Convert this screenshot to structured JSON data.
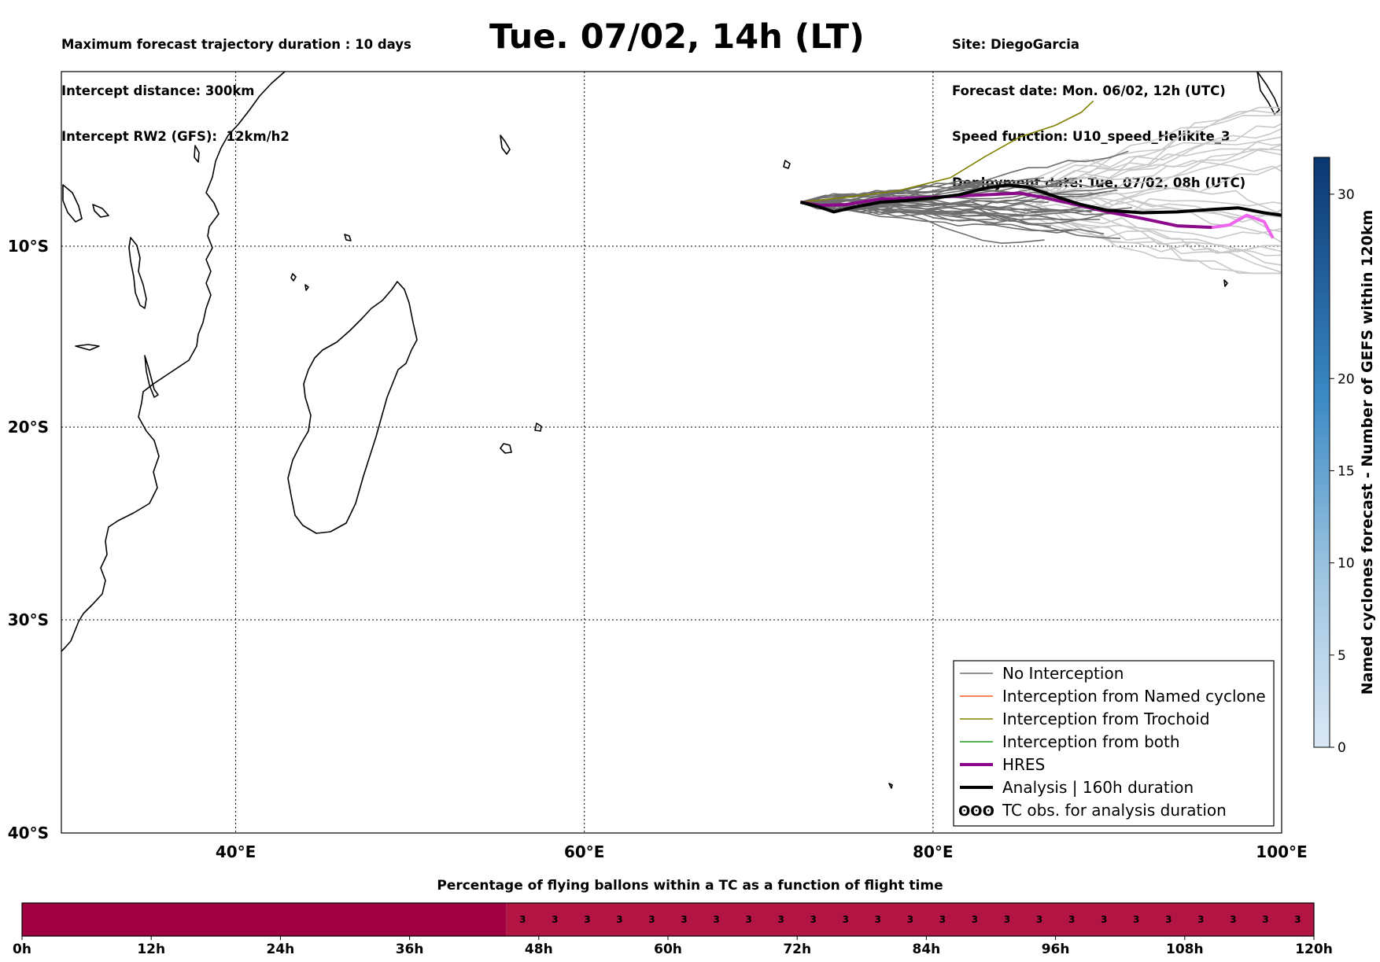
{
  "header": {
    "left_lines": [
      "Maximum forecast trajectory duration : 10 days",
      "Intercept distance: 300km",
      "Intercept RW2 (GFS):  12km/h2"
    ],
    "right_lines": [
      "Site: DiegoGarcia",
      "Forecast date: Mon. 06/02, 12h (UTC)",
      "Speed function: U10_speed_Helikite_3",
      "Deployment date: Tue. 07/02, 08h (UTC)"
    ],
    "title": "Tue. 07/02, 14h (LT)"
  },
  "map": {
    "extent": {
      "lon": [
        30,
        100
      ],
      "lat": [
        -40,
        0.7
      ]
    },
    "lon_ticks": [
      {
        "value": 40,
        "label": "40°E"
      },
      {
        "value": 60,
        "label": "60°E"
      },
      {
        "value": 80,
        "label": "80°E"
      },
      {
        "value": 100,
        "label": "100°E"
      }
    ],
    "lat_ticks": [
      {
        "value": -10,
        "label": "10°S"
      },
      {
        "value": -20,
        "label": "20°S"
      },
      {
        "value": -30,
        "label": "30°S"
      },
      {
        "value": -40,
        "label": "40°S"
      }
    ],
    "colors": {
      "no_interception": "#6e6e6e",
      "no_interception_light": "#c8c8c8",
      "named_cyclone": "#ff5a1e",
      "trochoid": "#808000",
      "both": "#1a9a1a",
      "hres": "#8b0a8b",
      "hres_late": "#ee66ee",
      "analysis": "#000000"
    },
    "legend": [
      {
        "key": "no-interception",
        "label": "No Interception"
      },
      {
        "key": "named-cyclone",
        "label": "Interception from Named cyclone"
      },
      {
        "key": "trochoid",
        "label": "Interception from Trochoid"
      },
      {
        "key": "both",
        "label": "Interception from both"
      },
      {
        "key": "hres",
        "label": "HRES"
      },
      {
        "key": "analysis",
        "label": "Analysis | 160h duration"
      },
      {
        "key": "tc-obs",
        "label": "TC obs. for analysis duration",
        "symbol": "ʘʘʘ"
      }
    ],
    "launch_point": {
      "lon": 72.4,
      "lat": -7.3
    },
    "hres_track": [
      [
        72.4,
        -7.3
      ],
      [
        73.5,
        -7.5
      ],
      [
        75,
        -7.45
      ],
      [
        77,
        -7.1
      ],
      [
        79,
        -7.05
      ],
      [
        81,
        -6.95
      ],
      [
        83,
        -6.85
      ],
      [
        85,
        -6.75
      ],
      [
        86.5,
        -7.05
      ],
      [
        88,
        -7.4
      ],
      [
        90,
        -7.9
      ],
      [
        92,
        -8.3
      ],
      [
        94,
        -8.75
      ],
      [
        96,
        -8.85
      ],
      [
        97,
        -8.7
      ],
      [
        98,
        -8.1
      ],
      [
        99,
        -8.5
      ],
      [
        99.5,
        -9.5
      ]
    ],
    "analysis_track": [
      [
        72.4,
        -7.3
      ],
      [
        73.5,
        -7.6
      ],
      [
        74.3,
        -7.9
      ],
      [
        75.5,
        -7.6
      ],
      [
        77,
        -7.3
      ],
      [
        78.5,
        -7.2
      ],
      [
        80,
        -7.05
      ],
      [
        81.5,
        -6.85
      ],
      [
        83,
        -6.45
      ],
      [
        84.3,
        -6.25
      ],
      [
        85.5,
        -6.4
      ],
      [
        87,
        -6.95
      ],
      [
        88.5,
        -7.45
      ],
      [
        90,
        -7.8
      ],
      [
        92,
        -7.95
      ],
      [
        94,
        -7.9
      ],
      [
        96,
        -7.75
      ],
      [
        97.5,
        -7.65
      ],
      [
        99,
        -7.95
      ],
      [
        100,
        -8.1
      ]
    ],
    "trochoid_track": [
      [
        72.4,
        -7.3
      ],
      [
        75,
        -7
      ],
      [
        78,
        -6.6
      ],
      [
        81,
        -5.8
      ],
      [
        83,
        -4.5
      ],
      [
        85,
        -3.3
      ],
      [
        87,
        -2.6
      ],
      [
        88.5,
        -1.8
      ],
      [
        89.2,
        -1.1
      ]
    ]
  },
  "colorbar": {
    "title": "Named cyclones forecast - Number of GEFS within 120km",
    "min": 0,
    "max": 32,
    "ticks": [
      0,
      5,
      10,
      15,
      20,
      30
    ],
    "color_low": "#dbe8f6",
    "color_high": "#0a3670"
  },
  "percentage_bar": {
    "title": "Percentage of flying ballons within a TC as a function of flight time",
    "max_hours": 120,
    "time_labels": [
      {
        "hours": 0,
        "label": "0h"
      },
      {
        "hours": 12,
        "label": "12h"
      },
      {
        "hours": 24,
        "label": "24h"
      },
      {
        "hours": 36,
        "label": "36h"
      },
      {
        "hours": 48,
        "label": "48h"
      },
      {
        "hours": 60,
        "label": "60h"
      },
      {
        "hours": 72,
        "label": "72h"
      },
      {
        "hours": 84,
        "label": "84h"
      },
      {
        "hours": 96,
        "label": "96h"
      },
      {
        "hours": 108,
        "label": "108h"
      },
      {
        "hours": 120,
        "label": "120h"
      }
    ],
    "zero_segment_end_hours": 45,
    "zero_color": "#a00040",
    "value_color": "#b21444",
    "cell_hours": 3,
    "cell_value": "3",
    "cell_start_hours": 45
  }
}
